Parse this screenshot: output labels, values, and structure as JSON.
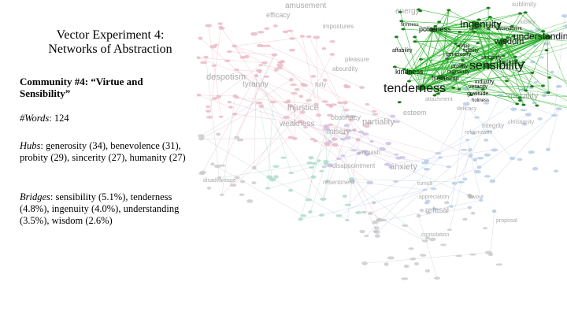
{
  "slide": {
    "title_line1": "Vector Experiment 4:",
    "title_line2": "Networks of Abstraction",
    "community_heading": "Community #4: “Virtue and Sensibility”",
    "words_label": "#Words",
    "words_value": ": 124",
    "hubs_label": "Hubs",
    "hubs_value": ": generosity (34), benevolence (31), probity (29), sincerity (27), humanity (27)",
    "bridges_label": "Bridges",
    "bridges_value": ": sensibility (5.1%), tenderness (4.8%), ingenuity (4.0%), understanding (3.5%), wisdom (2.6%)"
  },
  "network": {
    "colors": {
      "highlight": "#22b022",
      "highlight_dark": "#1f7a1f",
      "pink": "#e9b7c3",
      "teal": "#a9d9c8",
      "blue": "#b4cbe6",
      "lavender": "#cbbfe3",
      "grey_edge": "#d7d7d7"
    },
    "highlighted_labels": [
      {
        "text": "Ingenuity",
        "size": 13,
        "weight": "normal"
      },
      {
        "text": "politeness",
        "size": 9,
        "weight": "normal"
      },
      {
        "text": "wisdom",
        "size": 11,
        "weight": "normal"
      },
      {
        "text": "understanding",
        "size": 12,
        "weight": "normal"
      },
      {
        "text": "sensibility",
        "size": 16,
        "weight": "normal"
      },
      {
        "text": "tenderness",
        "size": 16,
        "weight": "normal"
      },
      {
        "text": "friendship",
        "size": 8,
        "weight": "normal"
      },
      {
        "text": "kindness",
        "size": 9,
        "weight": "normal"
      },
      {
        "text": "humanity",
        "size": 7,
        "weight": "normal"
      },
      {
        "text": "generosity",
        "size": 7,
        "weight": "normal"
      },
      {
        "text": "sincerity",
        "size": 7,
        "weight": "normal"
      },
      {
        "text": "probity",
        "size": 7,
        "weight": "normal"
      },
      {
        "text": "affability",
        "size": 7,
        "weight": "normal"
      },
      {
        "text": "gratitude",
        "size": 7,
        "weight": "normal"
      },
      {
        "text": "veracity",
        "size": 7,
        "weight": "normal"
      },
      {
        "text": "industry",
        "size": 7,
        "weight": "normal"
      },
      {
        "text": "fidelity",
        "size": 7,
        "weight": "normal"
      },
      {
        "text": "ascendment",
        "size": 6,
        "weight": "normal"
      },
      {
        "text": "firmness",
        "size": 6,
        "weight": "normal"
      },
      {
        "text": "virtue",
        "size": 6,
        "weight": "normal"
      },
      {
        "text": "holiness",
        "size": 6,
        "weight": "normal"
      }
    ],
    "background_labels": [
      {
        "text": "amusement",
        "size": 10,
        "color": "pink"
      },
      {
        "text": "efficacy",
        "size": 9,
        "color": "teal"
      },
      {
        "text": "impostures",
        "size": 8,
        "color": "pink"
      },
      {
        "text": "despotism",
        "size": 11,
        "color": "pink"
      },
      {
        "text": "tyranny",
        "size": 10,
        "color": "pink"
      },
      {
        "text": "pleasure",
        "size": 8,
        "color": "pink"
      },
      {
        "text": "absurdity",
        "size": 8,
        "color": "pink"
      },
      {
        "text": "folly",
        "size": 8,
        "color": "pink"
      },
      {
        "text": "injustice",
        "size": 11,
        "color": "pink"
      },
      {
        "text": "weakness",
        "size": 10,
        "color": "pink"
      },
      {
        "text": "obstinacy",
        "size": 9,
        "color": "pink"
      },
      {
        "text": "misery",
        "size": 10,
        "color": "pink"
      },
      {
        "text": "partiality",
        "size": 11,
        "color": "blue"
      },
      {
        "text": "esteem",
        "size": 9,
        "color": "blue"
      },
      {
        "text": "morality",
        "size": 11,
        "color": "blue"
      },
      {
        "text": "integrity",
        "size": 8,
        "color": "blue"
      },
      {
        "text": "anguish",
        "size": 8,
        "color": "pink"
      },
      {
        "text": "disappointment",
        "size": 8,
        "color": "pink"
      },
      {
        "text": "anxiety",
        "size": 11,
        "color": "blue"
      },
      {
        "text": "resentment",
        "size": 8,
        "color": "teal"
      },
      {
        "text": "appreciation",
        "size": 7,
        "color": "grey"
      },
      {
        "text": "refusal",
        "size": 10,
        "color": "blue"
      },
      {
        "text": "consolation",
        "size": 7,
        "color": "grey"
      },
      {
        "text": "disadvantage",
        "size": 7,
        "color": "teal"
      },
      {
        "text": "christianity",
        "size": 7,
        "color": "blue"
      },
      {
        "text": "reformation",
        "size": 7,
        "color": "grey"
      },
      {
        "text": "proposal",
        "size": 7,
        "color": "grey"
      },
      {
        "text": "energy",
        "size": 10,
        "color": "blue"
      },
      {
        "text": "sublimity",
        "size": 8,
        "color": "blue"
      },
      {
        "text": "nobility",
        "size": 7,
        "color": "blue"
      },
      {
        "text": "favour",
        "size": 7,
        "color": "grey"
      },
      {
        "text": "tumult",
        "size": 7,
        "color": "grey"
      },
      {
        "text": "attachment",
        "size": 7,
        "color": "blue"
      },
      {
        "text": "delicacy",
        "size": 7,
        "color": "blue"
      }
    ]
  }
}
